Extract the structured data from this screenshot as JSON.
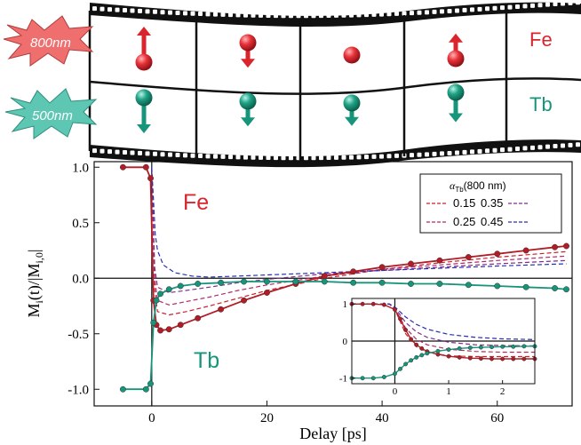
{
  "film": {
    "pump_top": "800nm",
    "pump_bottom": "500nm",
    "label_top": "Fe",
    "label_bottom": "Tb",
    "colors": {
      "fe": "#d9252b",
      "tb": "#17957a",
      "burst_top": "#ef6f6f",
      "burst_bottom": "#5ec7b3"
    },
    "fe_frames": [
      {
        "dir": "up",
        "length": 1.0
      },
      {
        "dir": "down",
        "length": 0.55
      },
      {
        "dir": "none",
        "length": 0
      },
      {
        "dir": "up",
        "length": 0.55
      }
    ],
    "tb_frames": [
      {
        "dir": "down",
        "length": 1.0
      },
      {
        "dir": "down",
        "length": 0.55
      },
      {
        "dir": "down",
        "length": 0.45
      },
      {
        "dir": "down",
        "length": 0.75
      }
    ]
  },
  "chart_data": [
    {
      "type": "line",
      "xlabel": "Delay [ps]",
      "ylabel": "M_i(t)/|M_i,0|",
      "xlim": [
        -10,
        73
      ],
      "ylim": [
        -1.15,
        1.05
      ],
      "xticks": [
        0,
        20,
        40,
        60
      ],
      "yticks": [
        1.0,
        0.5,
        0.0,
        -0.5,
        -1.0
      ],
      "ytick_labels": [
        "1.0",
        "0.5",
        "0.0",
        "-0.5",
        "-1.0"
      ],
      "annotations": [
        {
          "text": "Fe",
          "color": "#d9252b"
        },
        {
          "text": "Tb",
          "color": "#17957a"
        }
      ],
      "legend": {
        "placement": "top-right",
        "title": "α_Tb(800 nm)",
        "entries": [
          "0.15",
          "0.35",
          "0.25",
          "0.45"
        ]
      },
      "series": [
        {
          "name": "Fe",
          "color": "#b31b25",
          "marker": "circle",
          "x": [
            -5,
            -1,
            -0.2,
            0.3,
            0.8,
            1.5,
            3,
            5,
            8,
            12,
            16,
            20,
            25,
            30,
            35,
            40,
            45,
            50,
            55,
            60,
            65,
            70,
            72
          ],
          "y": [
            1.0,
            1.0,
            0.9,
            -0.2,
            -0.42,
            -0.47,
            -0.46,
            -0.42,
            -0.36,
            -0.28,
            -0.2,
            -0.13,
            -0.05,
            0.02,
            0.06,
            0.1,
            0.13,
            0.16,
            0.19,
            0.22,
            0.25,
            0.28,
            0.29
          ]
        },
        {
          "name": "Tb",
          "color": "#17957a",
          "marker": "circle",
          "x": [
            -5,
            -1,
            -0.2,
            0.3,
            0.8,
            1.5,
            3,
            5,
            8,
            12,
            16,
            20,
            25,
            30,
            35,
            40,
            45,
            50,
            55,
            60,
            65,
            70,
            72
          ],
          "y": [
            -1.0,
            -1.0,
            -0.95,
            -0.4,
            -0.2,
            -0.14,
            -0.1,
            -0.07,
            -0.05,
            -0.04,
            -0.03,
            -0.03,
            -0.03,
            -0.03,
            -0.04,
            -0.04,
            -0.05,
            -0.05,
            -0.06,
            -0.07,
            -0.08,
            -0.09,
            -0.1
          ]
        },
        {
          "name": "0.15",
          "color": "#c8202c",
          "style": "dashed",
          "x": [
            0,
            0.5,
            1,
            3,
            6,
            10,
            15,
            20,
            30,
            40,
            50,
            60,
            72
          ],
          "y": [
            1.0,
            -0.1,
            -0.3,
            -0.33,
            -0.3,
            -0.25,
            -0.18,
            -0.11,
            0.0,
            0.08,
            0.14,
            0.19,
            0.24
          ]
        },
        {
          "name": "0.25",
          "color": "#b02a6a",
          "style": "dashed",
          "x": [
            0,
            0.5,
            1,
            3,
            6,
            10,
            15,
            20,
            30,
            40,
            50,
            60,
            72
          ],
          "y": [
            1.0,
            0.0,
            -0.2,
            -0.24,
            -0.21,
            -0.17,
            -0.11,
            -0.06,
            0.02,
            0.08,
            0.12,
            0.16,
            0.2
          ]
        },
        {
          "name": "0.35",
          "color": "#7e2d8c",
          "style": "dashed",
          "x": [
            0,
            0.5,
            1,
            3,
            6,
            10,
            15,
            20,
            30,
            40,
            50,
            60,
            72
          ],
          "y": [
            1.0,
            0.1,
            -0.08,
            -0.13,
            -0.11,
            -0.08,
            -0.04,
            -0.01,
            0.04,
            0.07,
            0.1,
            0.13,
            0.16
          ]
        },
        {
          "name": "0.45",
          "color": "#2a2fb0",
          "style": "dashed",
          "x": [
            0,
            0.3,
            0.6,
            1,
            2,
            4,
            7,
            10,
            15,
            20,
            30,
            40,
            50,
            60,
            72
          ],
          "y": [
            1.0,
            0.7,
            0.4,
            0.25,
            0.12,
            0.05,
            0.02,
            0.01,
            0.02,
            0.03,
            0.05,
            0.07,
            0.09,
            0.11,
            0.13
          ]
        }
      ]
    },
    {
      "type": "line",
      "xlim": [
        -0.8,
        2.6
      ],
      "ylim": [
        -1.15,
        1.15
      ],
      "xticks": [
        0,
        1,
        2
      ],
      "yticks": [
        1,
        0,
        -1
      ],
      "series": [
        {
          "name": "Fe",
          "color": "#b31b25",
          "marker": "circle",
          "x": [
            -0.8,
            -0.6,
            -0.4,
            -0.2,
            0,
            0.1,
            0.2,
            0.3,
            0.4,
            0.5,
            0.6,
            0.8,
            1.0,
            1.2,
            1.4,
            1.6,
            1.8,
            2.0,
            2.2,
            2.4,
            2.6
          ],
          "y": [
            1.0,
            1.0,
            1.0,
            0.98,
            0.85,
            0.6,
            0.3,
            0.05,
            -0.1,
            -0.2,
            -0.28,
            -0.36,
            -0.41,
            -0.44,
            -0.46,
            -0.47,
            -0.48,
            -0.48,
            -0.48,
            -0.48,
            -0.48
          ]
        },
        {
          "name": "Tb",
          "color": "#17957a",
          "marker": "circle",
          "x": [
            -0.8,
            -0.6,
            -0.4,
            -0.2,
            0,
            0.1,
            0.2,
            0.3,
            0.4,
            0.5,
            0.6,
            0.8,
            1.0,
            1.2,
            1.4,
            1.6,
            1.8,
            2.0,
            2.2,
            2.4,
            2.6
          ],
          "y": [
            -1.0,
            -1.0,
            -1.0,
            -0.97,
            -0.88,
            -0.75,
            -0.62,
            -0.52,
            -0.44,
            -0.38,
            -0.33,
            -0.27,
            -0.23,
            -0.2,
            -0.18,
            -0.17,
            -0.16,
            -0.15,
            -0.15,
            -0.14,
            -0.14
          ]
        },
        {
          "name": "0.15",
          "color": "#c8202c",
          "style": "dashed",
          "x": [
            -0.8,
            -0.1,
            0,
            0.2,
            0.4,
            0.6,
            1.0,
            1.5,
            2.0,
            2.6
          ],
          "y": [
            1.0,
            1.0,
            0.85,
            0.2,
            -0.15,
            -0.3,
            -0.4,
            -0.42,
            -0.42,
            -0.42
          ]
        },
        {
          "name": "0.25",
          "color": "#b02a6a",
          "style": "dashed",
          "x": [
            -0.8,
            -0.1,
            0,
            0.2,
            0.4,
            0.6,
            1.0,
            1.5,
            2.0,
            2.6
          ],
          "y": [
            1.0,
            1.0,
            0.87,
            0.35,
            0.05,
            -0.1,
            -0.22,
            -0.28,
            -0.3,
            -0.3
          ]
        },
        {
          "name": "0.35",
          "color": "#7e2d8c",
          "style": "dashed",
          "x": [
            -0.8,
            -0.1,
            0,
            0.2,
            0.4,
            0.6,
            1.0,
            1.5,
            2.0,
            2.6
          ],
          "y": [
            1.0,
            1.0,
            0.9,
            0.5,
            0.25,
            0.1,
            -0.03,
            -0.1,
            -0.12,
            -0.13
          ]
        },
        {
          "name": "0.45",
          "color": "#2a2fb0",
          "style": "dashed",
          "x": [
            -0.8,
            -0.1,
            0,
            0.2,
            0.4,
            0.6,
            1.0,
            1.5,
            2.0,
            2.6
          ],
          "y": [
            1.0,
            1.0,
            0.92,
            0.65,
            0.45,
            0.32,
            0.18,
            0.1,
            0.06,
            0.04
          ]
        }
      ]
    }
  ]
}
